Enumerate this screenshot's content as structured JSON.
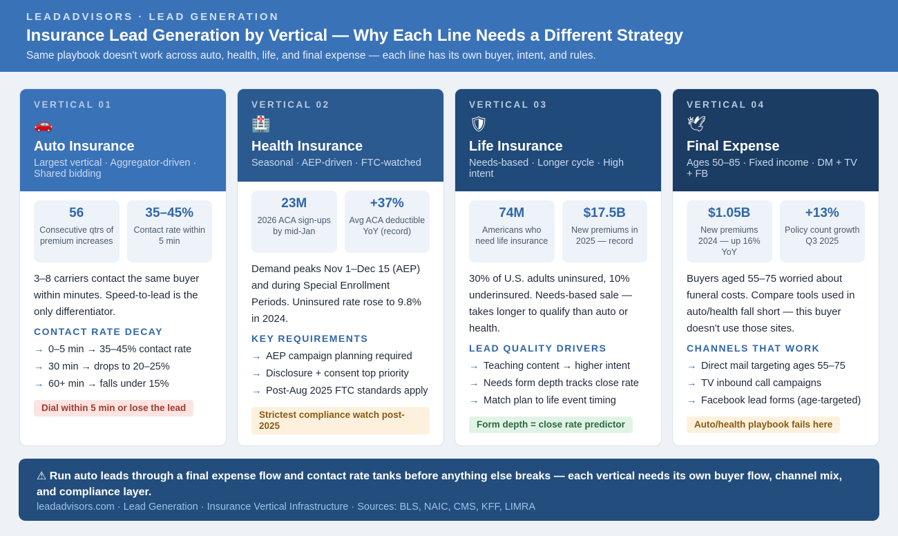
{
  "header": {
    "kicker": "LEADADVISORS · LEAD GENERATION",
    "title": "Insurance Lead Generation by Vertical — Why Each Line Needs a Different Strategy",
    "subtitle": "Same playbook doesn't work across auto, health, life, and final expense — each line has its own buyer, intent, and rules."
  },
  "cards": [
    {
      "label": "VERTICAL 01",
      "icon": "🚗",
      "icon_name": "car-icon",
      "title": "Auto Insurance",
      "tagline": "Largest vertical · Aggregator-driven · Shared bidding",
      "stats": [
        {
          "value": "56",
          "label": "Consecutive qtrs of premium increases"
        },
        {
          "value": "35–45%",
          "label": "Contact rate within 5 min"
        }
      ],
      "description": "3–8 carriers contact the same buyer within minutes. Speed-to-lead is the only differentiator.",
      "section_title": "CONTACT RATE DECAY",
      "bullets": [
        "0–5 min → 35–45% contact rate",
        "30 min → drops to 20–25%",
        "60+ min → falls under 15%"
      ],
      "badge": "Dial within 5 min or lose the lead",
      "badge_color": "#fbe4e1"
    },
    {
      "label": "VERTICAL 02",
      "icon": "🏥",
      "icon_name": "hospital-icon",
      "title": "Health Insurance",
      "tagline": "Seasonal · AEP-driven · FTC-watched",
      "stats": [
        {
          "value": "23M",
          "label": "2026 ACA sign-ups by mid-Jan"
        },
        {
          "value": "+37%",
          "label": "Avg ACA deductible YoY (record)"
        }
      ],
      "description": "Demand peaks Nov 1–Dec 15 (AEP) and during Special Enrollment Periods. Uninsured rate rose to 9.8% in 2024.",
      "section_title": "KEY REQUIREMENTS",
      "bullets": [
        "AEP campaign planning required",
        "Disclosure + consent top priority",
        "Post-Aug 2025 FTC standards apply"
      ],
      "badge": "Strictest compliance watch post-2025",
      "badge_color": "#fdf1de"
    },
    {
      "label": "VERTICAL 03",
      "icon": "🛡",
      "icon_name": "shield-icon",
      "title": "Life Insurance",
      "tagline": "Needs-based · Longer cycle · High intent",
      "stats": [
        {
          "value": "74M",
          "label": "Americans who need life insurance"
        },
        {
          "value": "$17.5B",
          "label": "New premiums in 2025 — record"
        }
      ],
      "description": "30% of U.S. adults uninsured, 10% underinsured. Needs-based sale — takes longer to qualify than auto or health.",
      "section_title": "LEAD QUALITY DRIVERS",
      "bullets": [
        "Teaching content → higher intent",
        "Needs form depth tracks close rate",
        "Match plan to life event timing"
      ],
      "badge": "Form depth = close rate predictor",
      "badge_color": "#e1f3e6"
    },
    {
      "label": "VERTICAL 04",
      "icon": "🕊",
      "icon_name": "dove-icon",
      "title": "Final Expense",
      "tagline": "Ages 50–85 · Fixed income · DM + TV + FB",
      "stats": [
        {
          "value": "$1.05B",
          "label": "New premiums 2024 — up 16% YoY"
        },
        {
          "value": "+13%",
          "label": "Policy count growth Q3 2025"
        }
      ],
      "description": "Buyers aged 55–75 worried about funeral costs. Compare tools used in auto/health fall short — this buyer doesn't use those sites.",
      "section_title": "CHANNELS THAT WORK",
      "bullets": [
        "Direct mail targeting ages 55–75",
        "TV inbound call campaigns",
        "Facebook lead forms (age-targeted)"
      ],
      "badge": "Auto/health playbook fails here",
      "badge_color": "#fdf1de"
    }
  ],
  "footer": {
    "main": "⚠ Run auto leads through a final expense flow and contact rate tanks before anything else breaks — each vertical needs its own buyer flow, channel mix, and compliance layer.",
    "sources": "leadadvisors.com · Lead Generation · Insurance Vertical Infrastructure · Sources: BLS, NAIC, CMS, KFF, LIMRA"
  },
  "colors": {
    "header_bg": "#3a72b8",
    "accent": "#2f66a9",
    "footer_bg": "#234d7c"
  }
}
